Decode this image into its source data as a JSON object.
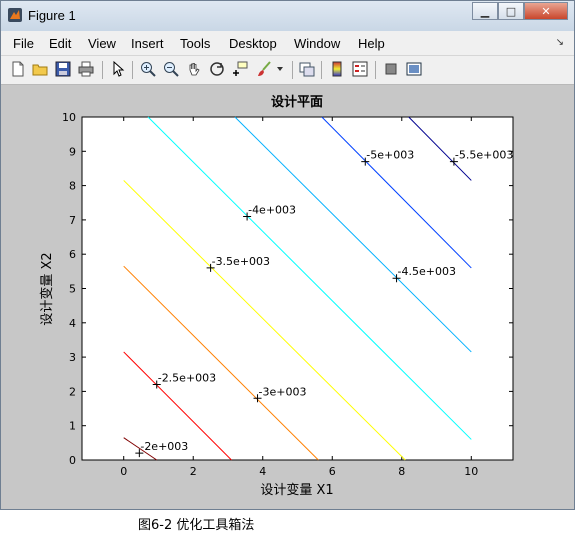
{
  "window": {
    "title": "Figure 1"
  },
  "controls": {
    "minimize": "▁",
    "maximize": "□",
    "close": "✕"
  },
  "menu": [
    "File",
    "Edit",
    "View",
    "Insert",
    "Tools",
    "Desktop",
    "Window",
    "Help"
  ],
  "toolbar_icons": [
    "new-figure-icon",
    "open-file-icon",
    "save-icon",
    "print-icon",
    "pointer-icon",
    "zoom-in-icon",
    "zoom-out-icon",
    "pan-hand-icon",
    "rotate-3d-icon",
    "data-cursor-icon",
    "brush-icon",
    "link-plot-icon",
    "colorbar-icon",
    "legend-icon",
    "hide-plot-tools-icon",
    "show-plot-tools-icon"
  ],
  "chart_data": {
    "type": "contour",
    "title": "设计平面",
    "xlabel": "设计变量  X1",
    "ylabel": "设计变量  X2",
    "xlim": [
      -1.2,
      11.2
    ],
    "ylim": [
      0,
      10
    ],
    "xticks": [
      0,
      2,
      4,
      6,
      8,
      10
    ],
    "yticks": [
      0,
      1,
      2,
      3,
      4,
      5,
      6,
      7,
      8,
      9,
      10
    ],
    "levels": [
      {
        "value": -2000,
        "label": "-2e+003",
        "color": "#800000",
        "line": [
          [
            0,
            0.65
          ],
          [
            0.95,
            0
          ]
        ],
        "marker": [
          0.45,
          0.2
        ]
      },
      {
        "value": -2500,
        "label": "-2.5e+003",
        "color": "#ff0000",
        "line": [
          [
            0,
            3.15
          ],
          [
            3.1,
            0
          ]
        ],
        "marker": [
          0.95,
          2.2
        ]
      },
      {
        "value": -3000,
        "label": "-3e+003",
        "color": "#ff8000",
        "line": [
          [
            0,
            5.65
          ],
          [
            5.6,
            0
          ]
        ],
        "marker": [
          3.85,
          1.8
        ]
      },
      {
        "value": -3500,
        "label": "-3.5e+003",
        "color": "#ffff00",
        "line": [
          [
            0,
            8.15
          ],
          [
            8.1,
            0
          ]
        ],
        "marker": [
          2.5,
          5.6
        ]
      },
      {
        "value": -4000,
        "label": "-4e+003",
        "color": "#00ffff",
        "line": [
          [
            0.7,
            10
          ],
          [
            10,
            0.6
          ]
        ],
        "marker": [
          3.55,
          7.1
        ]
      },
      {
        "value": -4500,
        "label": "-4.5e+003",
        "color": "#00b0ff",
        "line": [
          [
            3.2,
            10
          ],
          [
            10,
            3.15
          ]
        ],
        "marker": [
          7.85,
          5.3
        ]
      },
      {
        "value": -5000,
        "label": "-5e+003",
        "color": "#0040ff",
        "line": [
          [
            5.7,
            10
          ],
          [
            10,
            5.6
          ]
        ],
        "marker": [
          6.95,
          8.7
        ]
      },
      {
        "value": -5500,
        "label": "-5.5e+003",
        "color": "#00008f",
        "line": [
          [
            8.2,
            10
          ],
          [
            10,
            8.15
          ]
        ],
        "marker": [
          9.5,
          8.7
        ]
      }
    ]
  },
  "caption": "图6-2  优化工具箱法"
}
